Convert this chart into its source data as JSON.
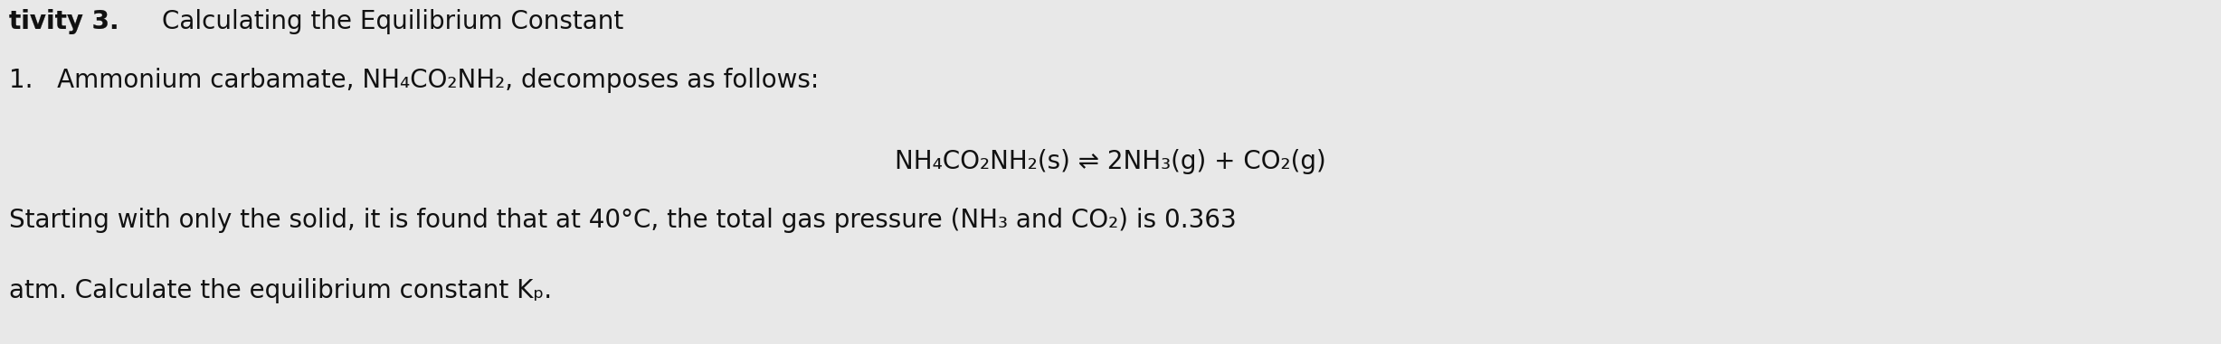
{
  "background_color": "#e8e8e8",
  "title_bold": "tivity 3.",
  "title_normal": " Calculating the Equilibrium Constant",
  "line1_text": "1.   Ammonium carbamate, NH₄CO₂NH₂, decomposes as follows:",
  "line2_text": "NH₄CO₂NH₂(s) ⇌ 2NH₃(g) + CO₂(g)",
  "line3_text": "Starting with only the solid, it is found that at 40°C, the total gas pressure (NH₃ and CO₂) is 0.363",
  "line4_text": "atm. Calculate the equilibrium constant Kₚ.",
  "font_size": 20,
  "text_color": "#111111",
  "fig_width": 24.55,
  "fig_height": 3.81,
  "dpi": 100
}
